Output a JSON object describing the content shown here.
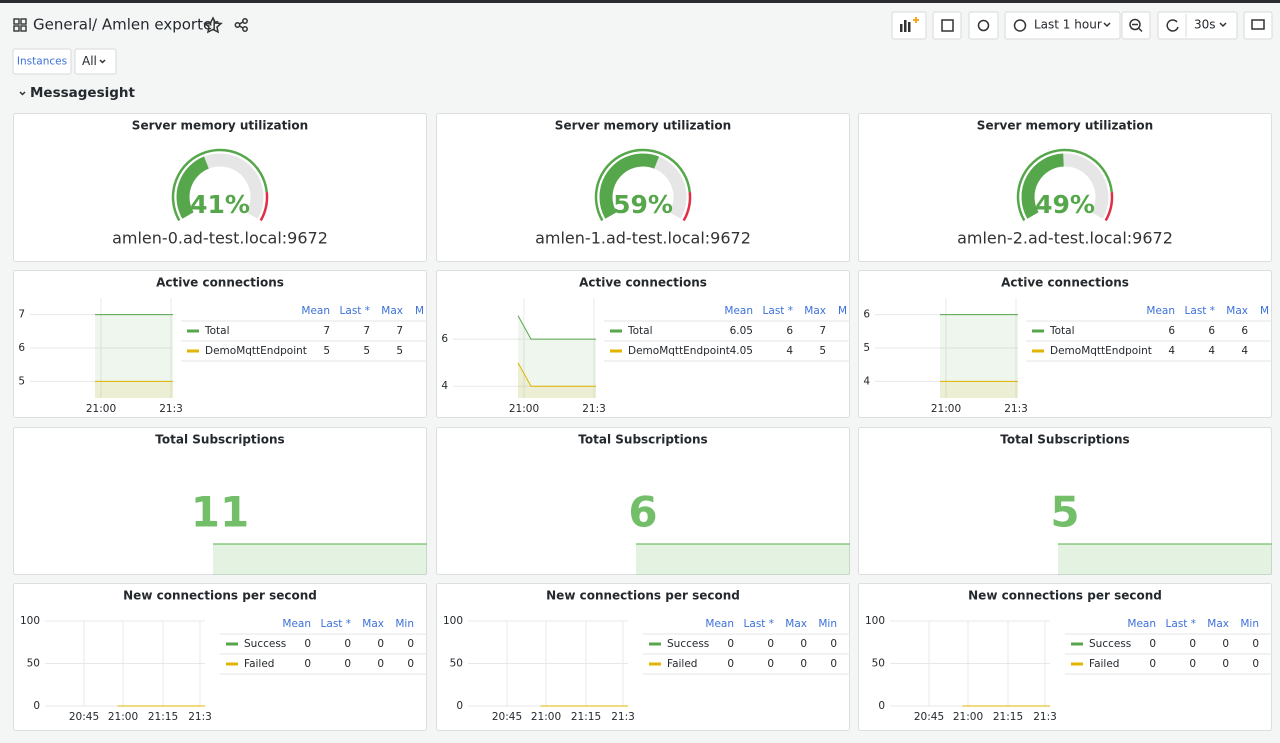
{
  "header": {
    "folder": "General",
    "title": "/ Amlen exporter",
    "time_range": "Last 1 hour",
    "refresh_interval": "30s"
  },
  "variables": {
    "label": "Instances",
    "value": "All"
  },
  "row": {
    "title": "Messagesight"
  },
  "gauge_settings": {
    "min": 0,
    "max": 100,
    "threshold": 85,
    "color": "#56a64b",
    "threshold_color": "#e02f44"
  },
  "gauges": [
    {
      "title": "Server memory utilization",
      "value": 41,
      "value_label": "41%",
      "instance": "amlen-0.ad-test.local:9672"
    },
    {
      "title": "Server memory utilization",
      "value": 59,
      "value_label": "59%",
      "instance": "amlen-1.ad-test.local:9672"
    },
    {
      "title": "Server memory utilization",
      "value": 49,
      "value_label": "49%",
      "instance": "amlen-2.ad-test.local:9672"
    }
  ],
  "active_connections": [
    {
      "title": "Active connections",
      "ylim": [
        4.5,
        7.5
      ],
      "yticks": [
        5,
        6,
        7
      ],
      "xticks": [
        "21:00",
        "21:3"
      ],
      "columns": [
        "Mean",
        "Last *",
        "Max",
        "M"
      ],
      "series": [
        {
          "name": "Total",
          "color": "#56a64b",
          "values": [
            null,
            null,
            null,
            null,
            null,
            7,
            7,
            7,
            7,
            7,
            7,
            7
          ],
          "stats": [
            7,
            7,
            7
          ]
        },
        {
          "name": "DemoMqttEndpoint",
          "color": "#e0b400",
          "values": [
            null,
            null,
            null,
            null,
            null,
            5,
            5,
            5,
            5,
            5,
            5,
            5
          ],
          "stats": [
            5,
            5,
            5
          ]
        }
      ]
    },
    {
      "title": "Active connections",
      "ylim": [
        3.5,
        7.75
      ],
      "yticks": [
        4,
        6
      ],
      "xticks": [
        "21:00",
        "21:3"
      ],
      "columns": [
        "Mean",
        "Last *",
        "Max",
        "M"
      ],
      "series": [
        {
          "name": "Total",
          "color": "#56a64b",
          "values": [
            null,
            null,
            null,
            null,
            null,
            7,
            6,
            6,
            6,
            6,
            6,
            6
          ],
          "stats": [
            6.05,
            6,
            7
          ]
        },
        {
          "name": "DemoMqttEndpoint",
          "color": "#e0b400",
          "values": [
            null,
            null,
            null,
            null,
            null,
            5,
            4,
            4,
            4,
            4,
            4,
            4
          ],
          "stats": [
            4.05,
            4,
            5
          ]
        }
      ]
    },
    {
      "title": "Active connections",
      "ylim": [
        3.5,
        6.5
      ],
      "yticks": [
        4,
        5,
        6
      ],
      "xticks": [
        "21:00",
        "21:3"
      ],
      "columns": [
        "Mean",
        "Last *",
        "Max",
        "M"
      ],
      "series": [
        {
          "name": "Total",
          "color": "#56a64b",
          "values": [
            null,
            null,
            null,
            null,
            null,
            6,
            6,
            6,
            6,
            6,
            6,
            6
          ],
          "stats": [
            6,
            6,
            6
          ]
        },
        {
          "name": "DemoMqttEndpoint",
          "color": "#e0b400",
          "values": [
            null,
            null,
            null,
            null,
            null,
            4,
            4,
            4,
            4,
            4,
            4,
            4
          ],
          "stats": [
            4,
            4,
            4
          ]
        }
      ]
    }
  ],
  "subscription_color": "#73bf69",
  "subscriptions": [
    {
      "title": "Total Subscriptions",
      "value": 11
    },
    {
      "title": "Total Subscriptions",
      "value": 6
    },
    {
      "title": "Total Subscriptions",
      "value": 5
    }
  ],
  "new_connections": [
    {
      "title": "New connections per second",
      "ylim": [
        0,
        100
      ],
      "yticks": [
        0,
        50,
        100
      ],
      "xticks": [
        "20:45",
        "21:00",
        "21:15",
        "21:3"
      ],
      "columns": [
        "Mean",
        "Last *",
        "Max",
        "Min"
      ],
      "series": [
        {
          "name": "Success",
          "color": "#56a64b",
          "values": [
            null,
            null,
            null,
            null,
            null,
            0,
            0,
            0,
            0,
            0,
            0,
            0
          ],
          "stats": [
            0,
            0,
            0,
            0
          ]
        },
        {
          "name": "Failed",
          "color": "#e0b400",
          "values": [
            null,
            null,
            null,
            null,
            null,
            0,
            0,
            0,
            0,
            0,
            0,
            0
          ],
          "stats": [
            0,
            0,
            0,
            0
          ]
        }
      ]
    },
    {
      "title": "New connections per second",
      "ylim": [
        0,
        100
      ],
      "yticks": [
        0,
        50,
        100
      ],
      "xticks": [
        "20:45",
        "21:00",
        "21:15",
        "21:3"
      ],
      "columns": [
        "Mean",
        "Last *",
        "Max",
        "Min"
      ],
      "series": [
        {
          "name": "Success",
          "color": "#56a64b",
          "values": [
            null,
            null,
            null,
            null,
            null,
            0,
            0,
            0,
            0,
            0,
            0,
            0
          ],
          "stats": [
            0,
            0,
            0,
            0
          ]
        },
        {
          "name": "Failed",
          "color": "#e0b400",
          "values": [
            null,
            null,
            null,
            null,
            null,
            0,
            0,
            0,
            0,
            0,
            0,
            0
          ],
          "stats": [
            0,
            0,
            0,
            0
          ]
        }
      ]
    },
    {
      "title": "New connections per second",
      "ylim": [
        0,
        100
      ],
      "yticks": [
        0,
        50,
        100
      ],
      "xticks": [
        "20:45",
        "21:00",
        "21:15",
        "21:3"
      ],
      "columns": [
        "Mean",
        "Last *",
        "Max",
        "Min"
      ],
      "series": [
        {
          "name": "Success",
          "color": "#56a64b",
          "values": [
            null,
            null,
            null,
            null,
            null,
            0,
            0,
            0,
            0,
            0,
            0,
            0
          ],
          "stats": [
            0,
            0,
            0,
            0
          ]
        },
        {
          "name": "Failed",
          "color": "#e0b400",
          "values": [
            null,
            null,
            null,
            null,
            null,
            0,
            0,
            0,
            0,
            0,
            0,
            0
          ],
          "stats": [
            0,
            0,
            0,
            0
          ]
        }
      ]
    }
  ]
}
